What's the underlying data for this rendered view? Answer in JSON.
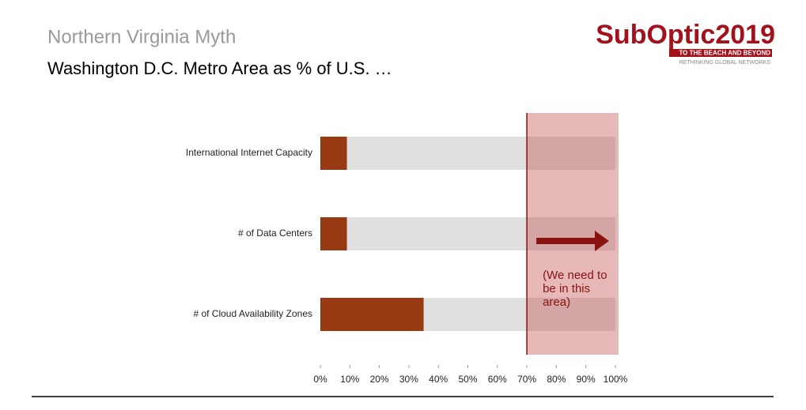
{
  "header": {
    "title": "Northern Virginia Myth",
    "subtitle": "Washington D.C. Metro Area as % of U.S. …"
  },
  "logo": {
    "name": "SubOptic2019",
    "tagline": "TO THE BEACH AND BEYOND",
    "subtagline": "RETHINKING GLOBAL NETWORKS"
  },
  "chart_data": {
    "type": "bar",
    "orientation": "horizontal",
    "categories": [
      "International Internet Capacity",
      "# of Data Centers",
      "# of Cloud Availability Zones"
    ],
    "values": [
      9,
      9,
      35
    ],
    "color": "#973a13",
    "background_color": "#e0e0e0",
    "xlim": [
      0,
      100
    ],
    "xticks": [
      {
        "value": 0,
        "label": "0%"
      },
      {
        "value": 10,
        "label": "10%"
      },
      {
        "value": 20,
        "label": "20%"
      },
      {
        "value": 30,
        "label": "30%"
      },
      {
        "value": 40,
        "label": "40%"
      },
      {
        "value": 50,
        "label": "50%"
      },
      {
        "value": 60,
        "label": "60%"
      },
      {
        "value": 70,
        "label": "70%"
      },
      {
        "value": 80,
        "label": "80%"
      },
      {
        "value": 90,
        "label": "90%"
      },
      {
        "value": 100,
        "label": "100%"
      }
    ],
    "annotation": {
      "text": "(We need to be in this area)",
      "x": 70,
      "color": "#8b1010"
    }
  }
}
